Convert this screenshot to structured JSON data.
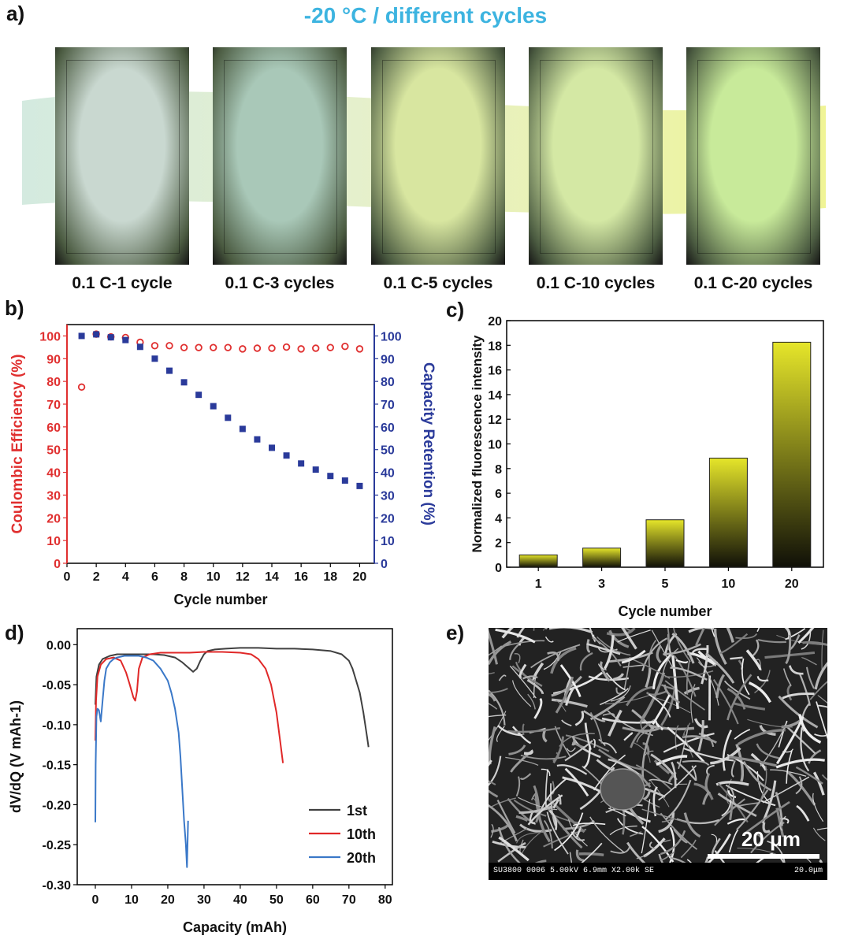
{
  "panels": {
    "a": "a)",
    "b": "b)",
    "c": "c)",
    "d": "d)",
    "e": "e)"
  },
  "panel_a": {
    "title": "-20 °C / different cycles",
    "photos": [
      {
        "label": "0.1 C-1 cycle",
        "glow": "#c9d8d0"
      },
      {
        "label": "0.1 C-3 cycles",
        "glow": "#a9c8b8"
      },
      {
        "label": "0.1 C-5 cycles",
        "glow": "#d8e6a0"
      },
      {
        "label": "0.1 C-10 cycles",
        "glow": "#d4e8a4"
      },
      {
        "label": "0.1 C-20 cycles",
        "glow": "#c8ea9a"
      }
    ]
  },
  "panel_e": {
    "scale_label": "20 μm",
    "info_left": "SU3800 0006 5.00kV 6.9mm X2.00k SE",
    "info_right": "20.0μm"
  },
  "colors": {
    "ce": "#e03030",
    "retention": "#2a3a9a",
    "first": "#404040",
    "tenth": "#e02828",
    "twentieth": "#3a78c8",
    "bar_top": "#e6e62a",
    "bar_bottom": "#101008"
  },
  "chart_data": [
    {
      "type": "scatter",
      "panel": "b",
      "xlabel": "Cycle number",
      "ylabel_left": "Coulombic Efficiency (%)",
      "ylabel_right": "Capacity Retention (%)",
      "xlim": [
        0,
        21
      ],
      "ylim_left": [
        0,
        105
      ],
      "ylim_right": [
        0,
        105
      ],
      "xticks": [
        "0",
        "2",
        "4",
        "6",
        "8",
        "10",
        "12",
        "14",
        "16",
        "18",
        "20"
      ],
      "yticks_left": [
        "0",
        "10",
        "20",
        "30",
        "40",
        "50",
        "60",
        "70",
        "80",
        "90",
        "100"
      ],
      "yticks_right": [
        "0",
        "10",
        "20",
        "30",
        "40",
        "50",
        "60",
        "70",
        "80",
        "90",
        "100"
      ],
      "series": [
        {
          "axis": "left",
          "marker": "circle",
          "x": [
            1,
            2,
            3,
            4,
            5,
            6,
            7,
            8,
            9,
            10,
            11,
            12,
            13,
            14,
            15,
            16,
            17,
            18,
            19,
            20
          ],
          "values": [
            77.5,
            100.8,
            99.6,
            99.3,
            97.2,
            95.7,
            95.7,
            94.9,
            94.9,
            94.9,
            94.9,
            94.3,
            94.6,
            94.6,
            95.1,
            94.3,
            94.6,
            94.9,
            95.4,
            94.3
          ]
        },
        {
          "axis": "right",
          "marker": "square",
          "x": [
            1,
            2,
            3,
            4,
            5,
            6,
            7,
            8,
            9,
            10,
            11,
            12,
            13,
            14,
            15,
            16,
            17,
            18,
            19,
            20
          ],
          "values": [
            100,
            100.7,
            99.4,
            98.2,
            95.2,
            90,
            84.7,
            79.6,
            74.1,
            69.1,
            64,
            59.1,
            54.5,
            50.8,
            47.4,
            43.9,
            41.2,
            38.4,
            36.4,
            34
          ]
        }
      ]
    },
    {
      "type": "bar",
      "panel": "c",
      "xlabel": "Cycle number",
      "ylabel": "Normalized  fluorescence intensity",
      "categories": [
        "1",
        "3",
        "5",
        "10",
        "20"
      ],
      "values": [
        1.0,
        1.55,
        3.85,
        8.85,
        18.25
      ],
      "ylim": [
        0,
        20
      ],
      "yticks": [
        "0",
        "2",
        "4",
        "6",
        "8",
        "10",
        "12",
        "14",
        "16",
        "18",
        "20"
      ]
    },
    {
      "type": "line",
      "panel": "d",
      "xlabel": "Capacity (mAh)",
      "ylabel": "dV/dQ (V mAh-1)",
      "xlim": [
        -5,
        82
      ],
      "ylim": [
        -0.3,
        0.02
      ],
      "xticks": [
        "0",
        "10",
        "20",
        "30",
        "40",
        "50",
        "60",
        "70",
        "80"
      ],
      "yticks": [
        "0.00",
        "-0.05",
        "-0.10",
        "-0.15",
        "-0.20",
        "-0.25",
        "-0.30"
      ],
      "legend": [
        "1st",
        "10th",
        "20th"
      ],
      "series": [
        {
          "name": "1st",
          "x": [
            0,
            0.3,
            1,
            2,
            4,
            6,
            8,
            10,
            13,
            16,
            19,
            22,
            24,
            26,
            27,
            28,
            29,
            30,
            31,
            33,
            36,
            40,
            45,
            50,
            55,
            60,
            65,
            68,
            70,
            71,
            72,
            73,
            74,
            74.5,
            75,
            75.4
          ],
          "values": [
            -0.075,
            -0.04,
            -0.025,
            -0.018,
            -0.014,
            -0.012,
            -0.012,
            -0.012,
            -0.012,
            -0.012,
            -0.013,
            -0.016,
            -0.022,
            -0.03,
            -0.034,
            -0.03,
            -0.02,
            -0.012,
            -0.008,
            -0.006,
            -0.005,
            -0.004,
            -0.004,
            -0.005,
            -0.005,
            -0.006,
            -0.008,
            -0.012,
            -0.02,
            -0.03,
            -0.045,
            -0.06,
            -0.085,
            -0.1,
            -0.115,
            -0.128
          ]
        },
        {
          "name": "10th",
          "x": [
            0,
            0.2,
            0.6,
            1.5,
            3,
            5,
            7,
            8.5,
            9.5,
            10.5,
            11,
            11.5,
            12,
            13,
            15,
            18,
            22,
            26,
            30,
            35,
            40,
            43,
            45,
            47,
            48.5,
            50,
            51,
            51.8
          ],
          "values": [
            -0.12,
            -0.07,
            -0.04,
            -0.025,
            -0.018,
            -0.016,
            -0.02,
            -0.035,
            -0.05,
            -0.066,
            -0.07,
            -0.058,
            -0.03,
            -0.016,
            -0.012,
            -0.01,
            -0.01,
            -0.01,
            -0.009,
            -0.009,
            -0.01,
            -0.012,
            -0.018,
            -0.03,
            -0.05,
            -0.085,
            -0.12,
            -0.148
          ]
        },
        {
          "name": "20th",
          "x": [
            0,
            0.1,
            0.3,
            0.6,
            1,
            1.5,
            2,
            2.5,
            3,
            4,
            5,
            6,
            8,
            10,
            12,
            14,
            16,
            18,
            20,
            21,
            22,
            23,
            23.5,
            24,
            24.5,
            25,
            25.3,
            25.6
          ],
          "values": [
            -0.222,
            -0.15,
            -0.09,
            -0.08,
            -0.082,
            -0.096,
            -0.07,
            -0.045,
            -0.03,
            -0.022,
            -0.018,
            -0.016,
            -0.014,
            -0.014,
            -0.014,
            -0.016,
            -0.02,
            -0.03,
            -0.045,
            -0.06,
            -0.08,
            -0.11,
            -0.14,
            -0.18,
            -0.22,
            -0.25,
            -0.278,
            -0.22
          ]
        }
      ]
    }
  ]
}
